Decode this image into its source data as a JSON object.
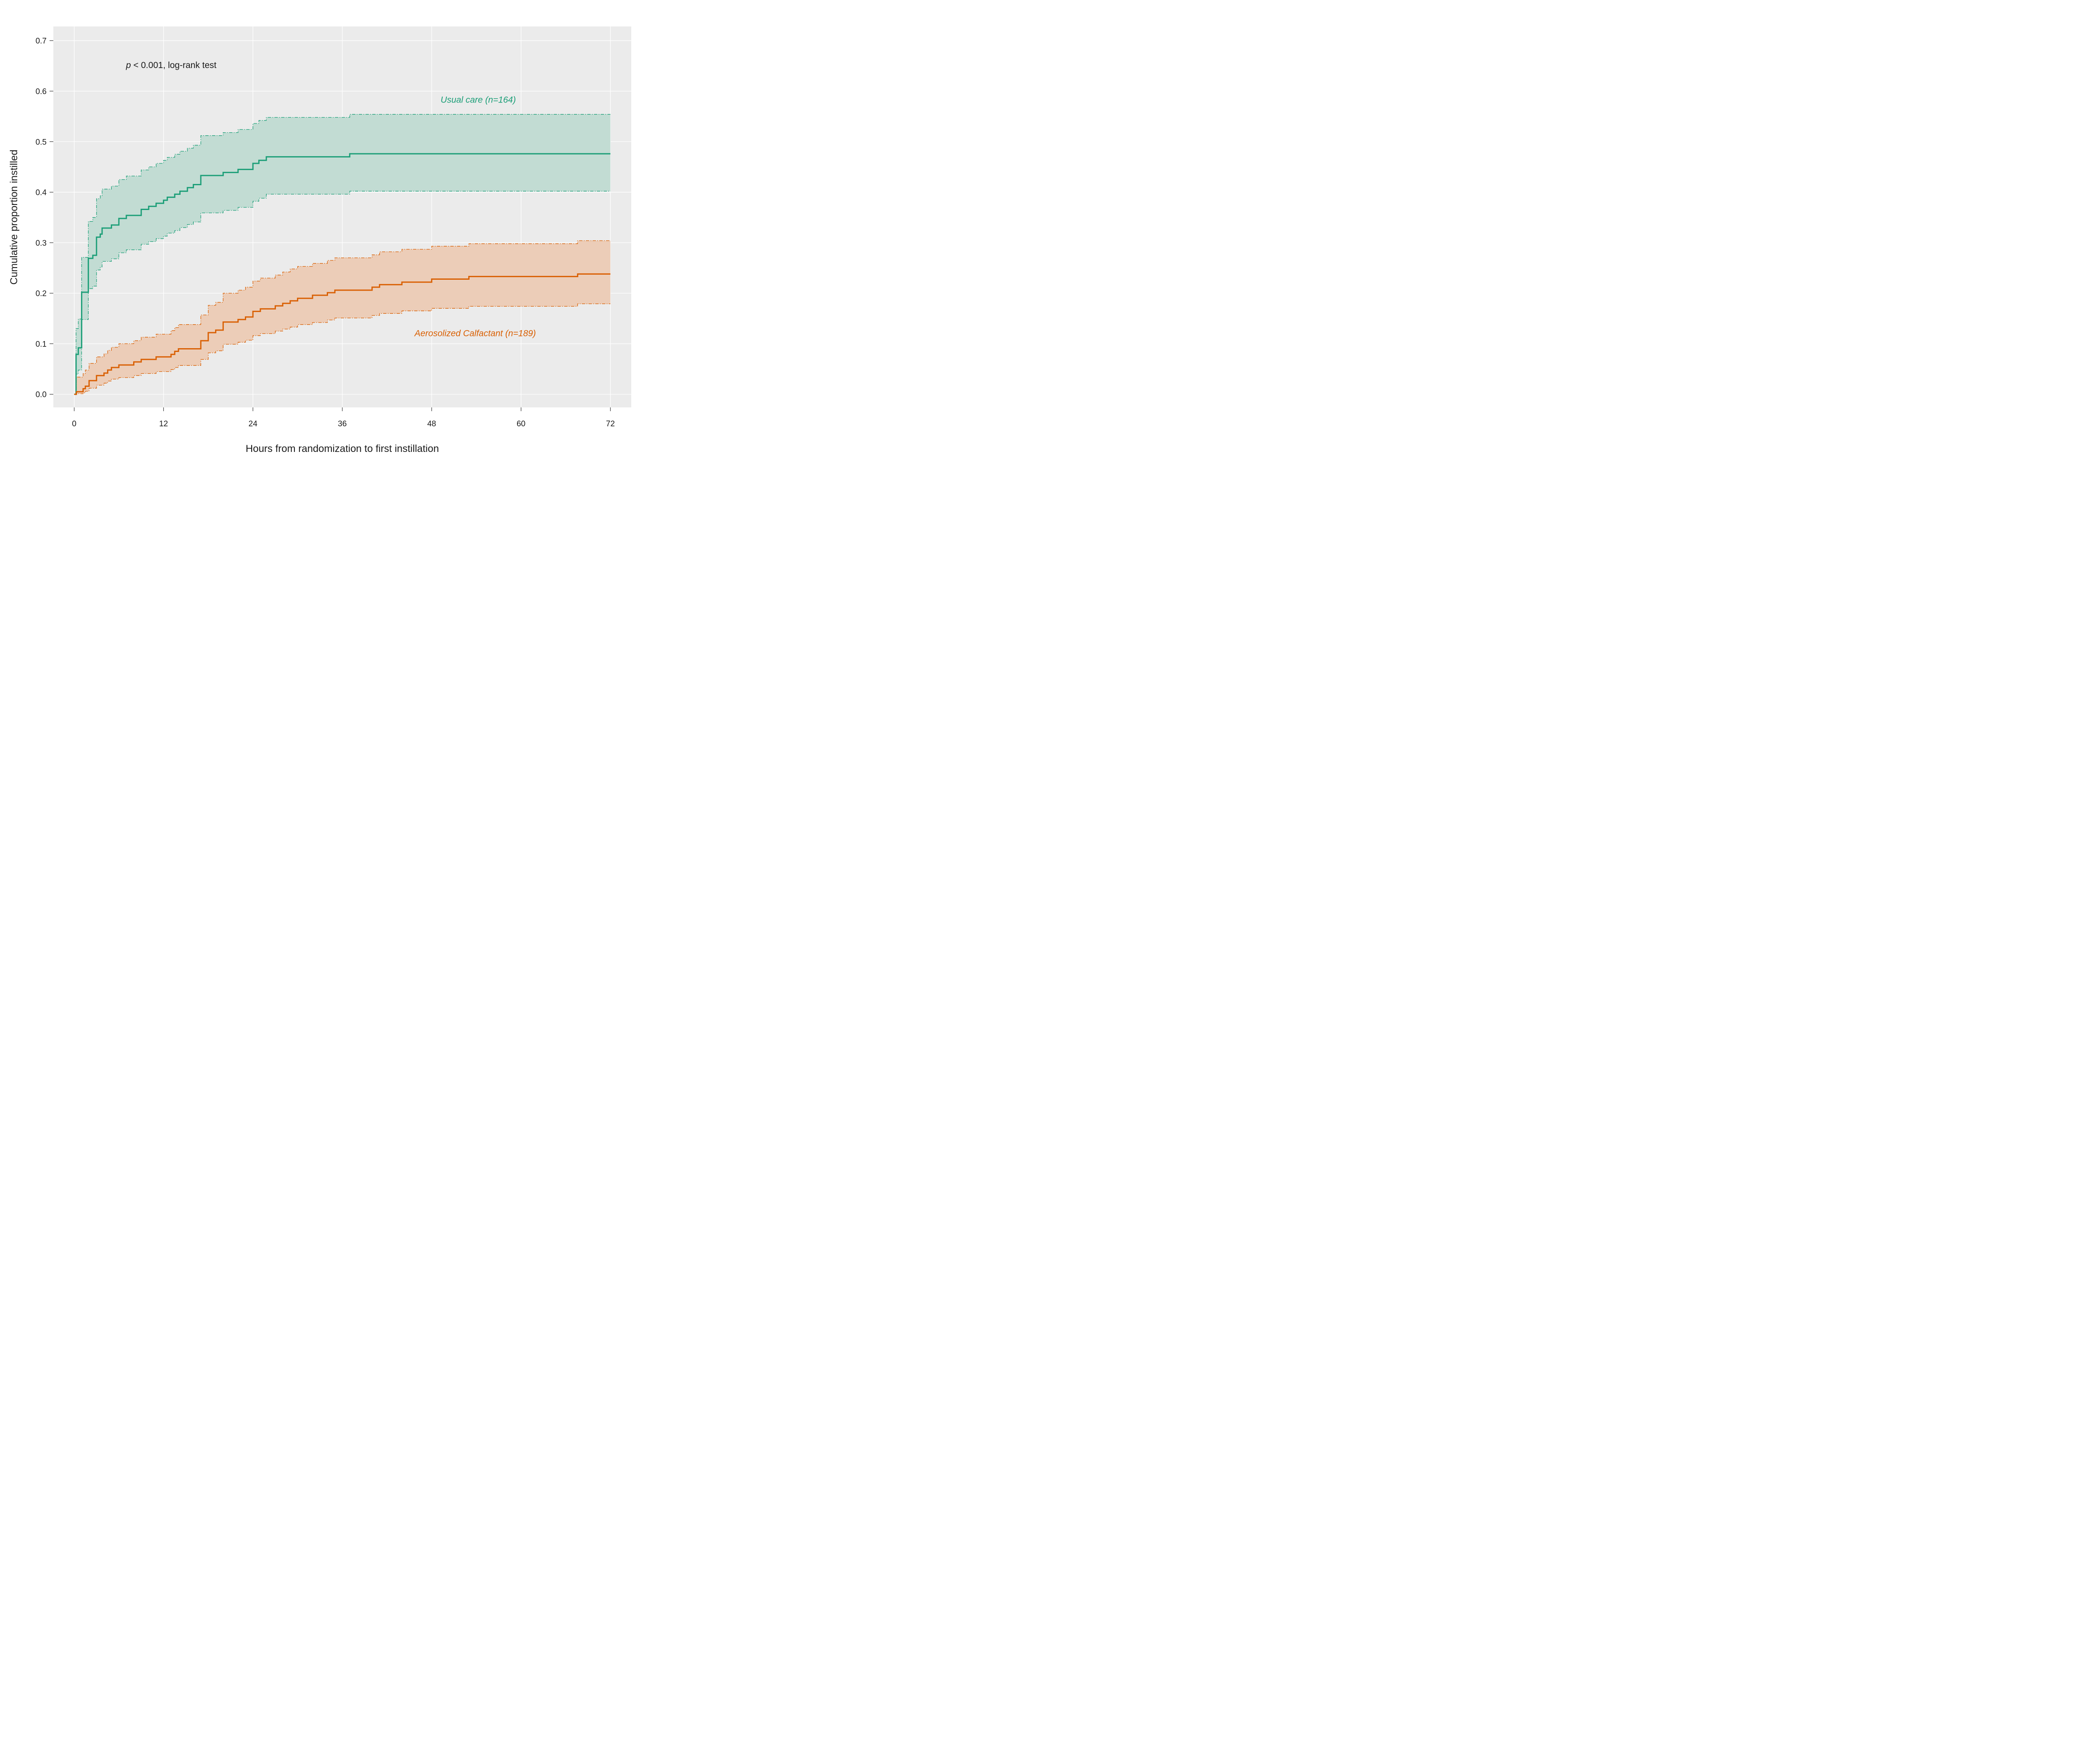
{
  "chart_data": {
    "type": "line",
    "step": true,
    "xlabel": "Hours from randomization to first instillation",
    "ylabel": "Cumulative proportion instilled",
    "xlim": [
      -2.8,
      74.8
    ],
    "ylim": [
      -0.026,
      0.728
    ],
    "x_ticks": [
      0,
      12,
      24,
      36,
      48,
      60,
      72
    ],
    "y_ticks": [
      0.0,
      0.1,
      0.2,
      0.3,
      0.4,
      0.5,
      0.6,
      0.7
    ],
    "y_tick_labels": [
      "0.0",
      "0.1",
      "0.2",
      "0.3",
      "0.4",
      "0.5",
      "0.6",
      "0.7"
    ],
    "grid": true,
    "background": "#ebebeb",
    "annotation": {
      "p_symbol": "p",
      "text": " < 0.001, log-rank test",
      "x": 7,
      "y": 0.65
    },
    "series": [
      {
        "name": "Usual care (n=164)",
        "label_x": 49.2,
        "label_y": 0.577,
        "color": "#1b9e77",
        "band_color": "#c2dcd3",
        "estimate": [
          [
            0,
            0
          ],
          [
            0.25,
            0.079
          ],
          [
            0.55,
            0.092
          ],
          [
            1,
            0.202
          ],
          [
            1.9,
            0.269
          ],
          [
            2.5,
            0.275
          ],
          [
            3,
            0.311
          ],
          [
            3.5,
            0.317
          ],
          [
            3.75,
            0.329
          ],
          [
            5,
            0.335
          ],
          [
            6,
            0.348
          ],
          [
            7,
            0.354
          ],
          [
            9,
            0.366
          ],
          [
            10,
            0.372
          ],
          [
            11,
            0.378
          ],
          [
            12,
            0.384
          ],
          [
            12.5,
            0.39
          ],
          [
            13.5,
            0.396
          ],
          [
            14.2,
            0.402
          ],
          [
            15.2,
            0.409
          ],
          [
            16,
            0.415
          ],
          [
            17,
            0.433
          ],
          [
            20,
            0.439
          ],
          [
            22,
            0.445
          ],
          [
            24,
            0.457
          ],
          [
            24.8,
            0.463
          ],
          [
            25.8,
            0.47
          ],
          [
            37,
            0.476
          ],
          [
            72,
            0.476
          ]
        ],
        "lower": [
          [
            0,
            0
          ],
          [
            0.25,
            0.04
          ],
          [
            0.55,
            0.048
          ],
          [
            1,
            0.148
          ],
          [
            1.9,
            0.209
          ],
          [
            2.5,
            0.214
          ],
          [
            3,
            0.246
          ],
          [
            3.5,
            0.252
          ],
          [
            3.75,
            0.263
          ],
          [
            5,
            0.268
          ],
          [
            6,
            0.28
          ],
          [
            7,
            0.286
          ],
          [
            9,
            0.297
          ],
          [
            10,
            0.302
          ],
          [
            11,
            0.308
          ],
          [
            12,
            0.313
          ],
          [
            12.5,
            0.319
          ],
          [
            13.5,
            0.324
          ],
          [
            14.2,
            0.33
          ],
          [
            15.2,
            0.336
          ],
          [
            16,
            0.341
          ],
          [
            17,
            0.359
          ],
          [
            20,
            0.364
          ],
          [
            22,
            0.37
          ],
          [
            24,
            0.382
          ],
          [
            24.8,
            0.388
          ],
          [
            25.8,
            0.396
          ],
          [
            37,
            0.402
          ],
          [
            72,
            0.402
          ]
        ],
        "upper": [
          [
            0,
            0
          ],
          [
            0.25,
            0.13
          ],
          [
            0.55,
            0.149
          ],
          [
            1,
            0.271
          ],
          [
            1.9,
            0.342
          ],
          [
            2.5,
            0.35
          ],
          [
            3,
            0.387
          ],
          [
            3.5,
            0.393
          ],
          [
            3.75,
            0.406
          ],
          [
            5,
            0.412
          ],
          [
            6,
            0.425
          ],
          [
            7,
            0.432
          ],
          [
            9,
            0.444
          ],
          [
            10,
            0.45
          ],
          [
            11,
            0.457
          ],
          [
            12,
            0.463
          ],
          [
            12.5,
            0.469
          ],
          [
            13.5,
            0.475
          ],
          [
            14.2,
            0.481
          ],
          [
            15.2,
            0.487
          ],
          [
            16,
            0.493
          ],
          [
            17,
            0.512
          ],
          [
            20,
            0.518
          ],
          [
            22,
            0.524
          ],
          [
            24,
            0.536
          ],
          [
            24.8,
            0.542
          ],
          [
            25.8,
            0.548
          ],
          [
            37,
            0.554
          ],
          [
            72,
            0.554
          ]
        ]
      },
      {
        "name": "Aerosolized Calfactant (n=189)",
        "label_x": 45.7,
        "label_y": 0.115,
        "color": "#d95f02",
        "band_color": "#eccdb8",
        "estimate": [
          [
            0,
            0
          ],
          [
            0.3,
            0.005
          ],
          [
            1.2,
            0.011
          ],
          [
            1.5,
            0.016
          ],
          [
            2,
            0.027
          ],
          [
            3,
            0.037
          ],
          [
            4,
            0.042
          ],
          [
            4.5,
            0.048
          ],
          [
            5,
            0.053
          ],
          [
            6,
            0.058
          ],
          [
            8,
            0.064
          ],
          [
            9,
            0.069
          ],
          [
            11,
            0.074
          ],
          [
            13,
            0.079
          ],
          [
            13.5,
            0.085
          ],
          [
            14,
            0.09
          ],
          [
            17,
            0.106
          ],
          [
            18,
            0.122
          ],
          [
            19,
            0.127
          ],
          [
            20,
            0.143
          ],
          [
            22,
            0.148
          ],
          [
            23,
            0.153
          ],
          [
            24,
            0.164
          ],
          [
            25,
            0.169
          ],
          [
            27,
            0.175
          ],
          [
            28,
            0.18
          ],
          [
            29,
            0.185
          ],
          [
            30,
            0.19
          ],
          [
            32,
            0.196
          ],
          [
            34,
            0.201
          ],
          [
            35,
            0.206
          ],
          [
            40,
            0.212
          ],
          [
            41,
            0.217
          ],
          [
            44,
            0.222
          ],
          [
            48,
            0.228
          ],
          [
            53,
            0.233
          ],
          [
            67.6,
            0.238
          ],
          [
            72,
            0.238
          ]
        ],
        "lower": [
          [
            0,
            0
          ],
          [
            0.3,
            0.001
          ],
          [
            1.2,
            0.003
          ],
          [
            1.5,
            0.006
          ],
          [
            2,
            0.012
          ],
          [
            3,
            0.018
          ],
          [
            4,
            0.022
          ],
          [
            4.5,
            0.026
          ],
          [
            5,
            0.03
          ],
          [
            6,
            0.033
          ],
          [
            8,
            0.037
          ],
          [
            9,
            0.041
          ],
          [
            11,
            0.045
          ],
          [
            13,
            0.049
          ],
          [
            13.5,
            0.053
          ],
          [
            14,
            0.057
          ],
          [
            17,
            0.069
          ],
          [
            18,
            0.082
          ],
          [
            19,
            0.086
          ],
          [
            20,
            0.099
          ],
          [
            22,
            0.103
          ],
          [
            23,
            0.107
          ],
          [
            24,
            0.116
          ],
          [
            25,
            0.12
          ],
          [
            27,
            0.125
          ],
          [
            28,
            0.129
          ],
          [
            29,
            0.133
          ],
          [
            30,
            0.138
          ],
          [
            32,
            0.142
          ],
          [
            34,
            0.147
          ],
          [
            35,
            0.151
          ],
          [
            40,
            0.156
          ],
          [
            41,
            0.16
          ],
          [
            44,
            0.165
          ],
          [
            48,
            0.17
          ],
          [
            53,
            0.174
          ],
          [
            67.6,
            0.179
          ],
          [
            72,
            0.179
          ]
        ],
        "upper": [
          [
            0,
            0
          ],
          [
            0.3,
            0.034
          ],
          [
            1.2,
            0.041
          ],
          [
            1.5,
            0.048
          ],
          [
            2,
            0.061
          ],
          [
            3,
            0.074
          ],
          [
            4,
            0.08
          ],
          [
            4.5,
            0.087
          ],
          [
            5,
            0.093
          ],
          [
            6,
            0.1
          ],
          [
            8,
            0.106
          ],
          [
            9,
            0.113
          ],
          [
            11,
            0.119
          ],
          [
            13,
            0.126
          ],
          [
            13.5,
            0.132
          ],
          [
            14,
            0.138
          ],
          [
            17,
            0.157
          ],
          [
            18,
            0.176
          ],
          [
            19,
            0.182
          ],
          [
            20,
            0.2
          ],
          [
            22,
            0.206
          ],
          [
            23,
            0.212
          ],
          [
            24,
            0.224
          ],
          [
            25,
            0.23
          ],
          [
            27,
            0.236
          ],
          [
            28,
            0.242
          ],
          [
            29,
            0.248
          ],
          [
            30,
            0.253
          ],
          [
            32,
            0.259
          ],
          [
            34,
            0.265
          ],
          [
            35,
            0.27
          ],
          [
            40,
            0.276
          ],
          [
            41,
            0.282
          ],
          [
            44,
            0.287
          ],
          [
            48,
            0.293
          ],
          [
            53,
            0.298
          ],
          [
            67.6,
            0.304
          ],
          [
            72,
            0.304
          ]
        ]
      }
    ]
  }
}
